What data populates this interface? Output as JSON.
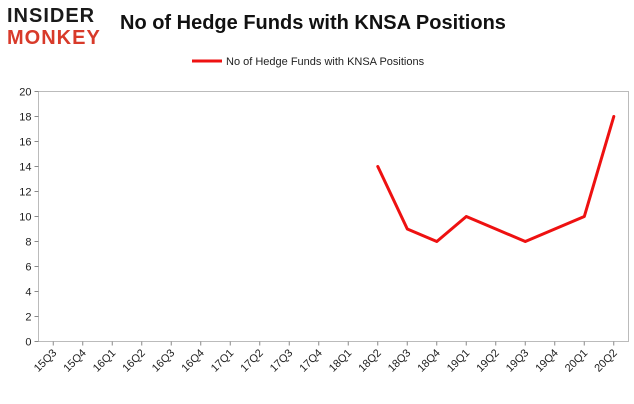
{
  "logo": {
    "line1": "INSIDER",
    "line2": "MONKEY"
  },
  "chart_data": {
    "type": "line",
    "title": "No of Hedge Funds with KNSA Positions",
    "categories": [
      "15Q3",
      "15Q4",
      "16Q1",
      "16Q2",
      "16Q3",
      "16Q4",
      "17Q1",
      "17Q2",
      "17Q3",
      "17Q4",
      "18Q1",
      "18Q2",
      "18Q3",
      "18Q4",
      "19Q1",
      "19Q2",
      "19Q3",
      "19Q4",
      "20Q1",
      "20Q2"
    ],
    "series": [
      {
        "name": "No of Hedge Funds with KNSA Positions",
        "color": "#ee1111",
        "values": [
          null,
          null,
          null,
          null,
          null,
          null,
          null,
          null,
          null,
          null,
          null,
          14,
          9,
          8,
          10,
          9,
          8,
          9,
          10,
          18
        ]
      }
    ],
    "ylim": [
      0,
      20
    ],
    "yticks": [
      0,
      2,
      4,
      6,
      8,
      10,
      12,
      14,
      16,
      18,
      20
    ],
    "grid": false,
    "legend_position": "top-center"
  }
}
